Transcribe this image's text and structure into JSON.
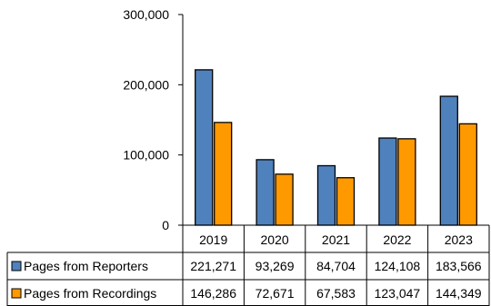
{
  "chart_data": {
    "type": "bar",
    "title": "",
    "xlabel": "",
    "ylabel": "",
    "categories": [
      "2019",
      "2020",
      "2021",
      "2022",
      "2023"
    ],
    "ylim": [
      0,
      300000
    ],
    "y_ticks": [
      "0",
      "100,000",
      "200,000",
      "300,000"
    ],
    "y_tick_values": [
      0,
      100000,
      200000,
      300000
    ],
    "grid": false,
    "legend": "data-table",
    "series": [
      {
        "name": "Pages from Reporters",
        "color": "#4f81bd",
        "values": [
          221271,
          93269,
          84704,
          124108,
          183566
        ],
        "labels": [
          "221,271",
          "93,269",
          "84,704",
          "124,108",
          "183,566"
        ]
      },
      {
        "name": "Pages from Recordings",
        "color": "#ff9900",
        "values": [
          146286,
          72671,
          67583,
          123047,
          144349
        ],
        "labels": [
          "146,286",
          "72,671",
          "67,583",
          "123,047",
          "144,349"
        ]
      }
    ]
  }
}
